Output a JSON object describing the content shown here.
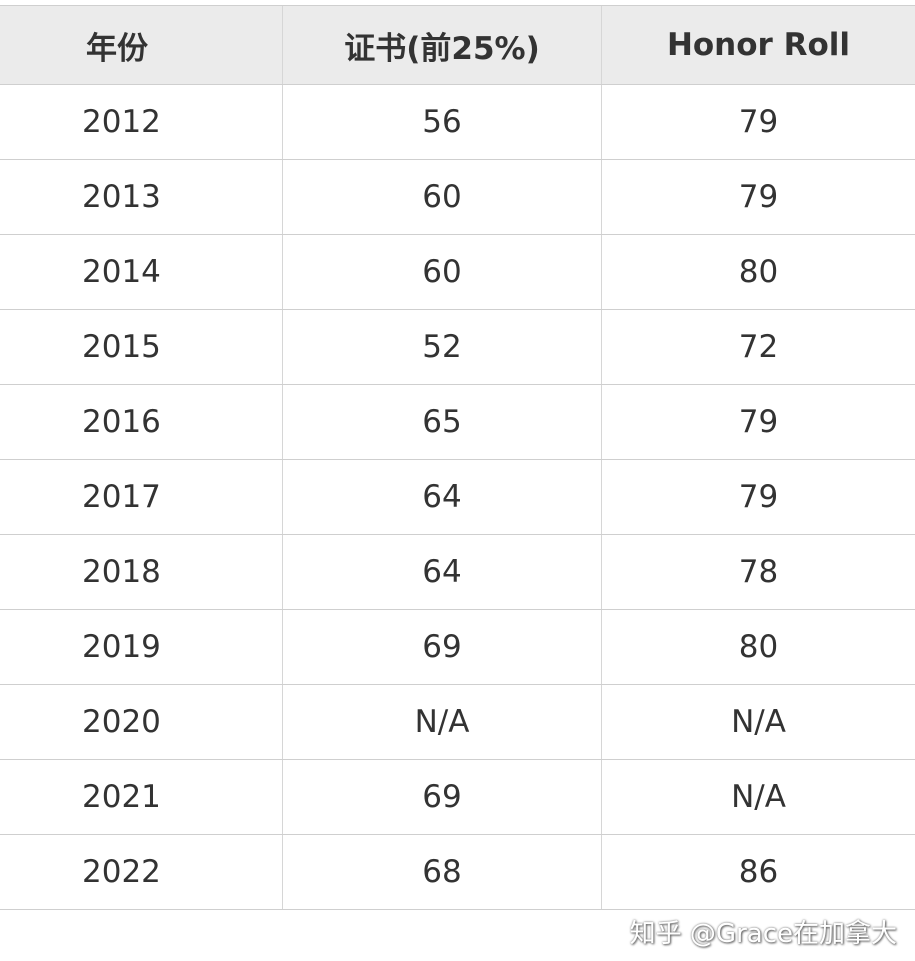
{
  "table": {
    "headers": [
      "年份",
      "证书(前25%)",
      "Honor Roll"
    ],
    "rows": [
      [
        "2012",
        "56",
        "79"
      ],
      [
        "2013",
        "60",
        "79"
      ],
      [
        "2014",
        "60",
        "80"
      ],
      [
        "2015",
        "52",
        "72"
      ],
      [
        "2016",
        "65",
        "79"
      ],
      [
        "2017",
        "64",
        "79"
      ],
      [
        "2018",
        "64",
        "78"
      ],
      [
        "2019",
        "69",
        "80"
      ],
      [
        "2020",
        "N/A",
        "N/A"
      ],
      [
        "2021",
        "69",
        "N/A"
      ],
      [
        "2022",
        "68",
        "86"
      ]
    ]
  },
  "watermark": "知乎 @Grace在加拿大"
}
